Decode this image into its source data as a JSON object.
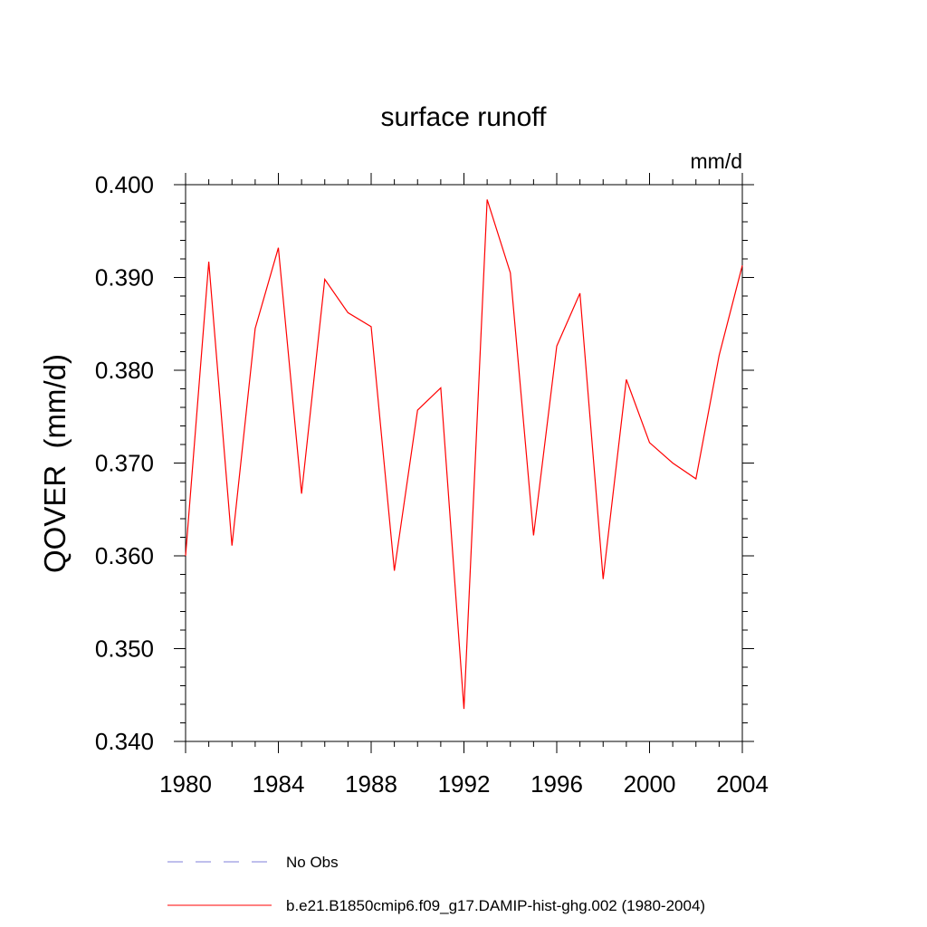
{
  "chart_data": {
    "type": "line",
    "title": "surface runoff",
    "units": "mm/d",
    "ylabel": "QOVER  (mm/d)",
    "xlabel": "",
    "xlim": [
      1980,
      2004
    ],
    "ylim": [
      0.34,
      0.4
    ],
    "x_ticks": [
      "1980",
      "1984",
      "1988",
      "1992",
      "1996",
      "2000",
      "2004"
    ],
    "y_ticks": [
      "0.340",
      "0.350",
      "0.360",
      "0.370",
      "0.380",
      "0.390",
      "0.400"
    ],
    "grid": false,
    "series": [
      {
        "name": "b.e21.B1850cmip6.f09_g17.DAMIP-hist-ghg.002 (1980-2004)",
        "color": "#ff0000",
        "style": "solid",
        "x": [
          1980,
          1981,
          1982,
          1983,
          1984,
          1985,
          1986,
          1987,
          1988,
          1989,
          1990,
          1991,
          1992,
          1993,
          1994,
          1995,
          1996,
          1997,
          1998,
          1999,
          2000,
          2001,
          2002,
          2003,
          2004
        ],
        "y": [
          0.36,
          0.3917,
          0.3611,
          0.3845,
          0.3932,
          0.3667,
          0.3898,
          0.3862,
          0.3847,
          0.3584,
          0.3757,
          0.3781,
          0.3435,
          0.3984,
          0.3905,
          0.3622,
          0.3826,
          0.3883,
          0.3575,
          0.379,
          0.3722,
          0.37,
          0.3683,
          0.3816,
          0.3913
        ]
      }
    ],
    "legend": [
      {
        "label": "No Obs",
        "color": "#7f7fd8",
        "style": "dashed"
      },
      {
        "label": "b.e21.B1850cmip6.f09_g17.DAMIP-hist-ghg.002 (1980-2004)",
        "color": "#ff0000",
        "style": "solid"
      }
    ]
  }
}
